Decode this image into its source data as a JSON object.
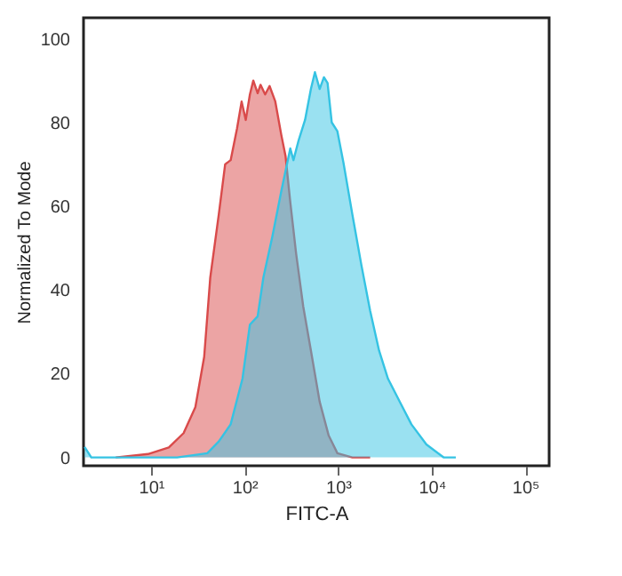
{
  "chart_data": {
    "type": "area",
    "xlabel": "FITC-A",
    "ylabel": "Normalized To Mode",
    "log": "x",
    "xlim": [
      1.9,
      180000
    ],
    "xticks": [
      {
        "value": 10,
        "label": "10¹"
      },
      {
        "value": 100,
        "label": "10²"
      },
      {
        "value": 1000,
        "label": "10³"
      },
      {
        "value": 10000,
        "label": "10⁴"
      },
      {
        "value": 100000,
        "label": "10⁵"
      }
    ],
    "ylim": [
      -2,
      105
    ],
    "yticks": [
      0,
      20,
      40,
      60,
      80,
      100
    ],
    "grid": false,
    "series": [
      {
        "color": "#d94a4a",
        "x": [
          4.2,
          9.3,
          15.5,
          22.3,
          29.8,
          37,
          43,
          53,
          62,
          71,
          83,
          93,
          103,
          114,
          124,
          138,
          148,
          166,
          185,
          213,
          247,
          274,
          308,
          356,
          424,
          512,
          635,
          793,
          982,
          1420,
          2200
        ],
        "values": [
          0,
          0.8,
          2.4,
          5.8,
          12,
          24,
          43,
          58,
          70,
          71,
          78.5,
          85,
          80.6,
          86.7,
          90,
          87,
          89,
          86.7,
          88.7,
          85,
          77,
          72,
          61,
          48.6,
          36,
          25.5,
          13.3,
          5.2,
          1,
          0,
          0
        ]
      },
      {
        "color": "#35c3e3",
        "x": [
          1.95,
          2.3,
          19,
          40,
          53,
          71,
          95,
          114,
          138,
          159,
          198,
          247,
          308,
          333,
          379,
          443,
          512,
          565,
          635,
          705,
          771,
          855,
          982,
          1140,
          1420,
          1770,
          2200,
          2740,
          3410,
          4560,
          6070,
          8780,
          13400,
          18100
        ],
        "values": [
          2.5,
          0,
          0,
          1,
          3.8,
          7.9,
          18.8,
          31.7,
          33.7,
          43,
          52.7,
          63.6,
          73.8,
          71,
          75.8,
          80.6,
          88,
          92,
          88,
          90.8,
          89.4,
          80,
          77.9,
          70.4,
          58,
          46,
          35,
          25.5,
          18.8,
          13.3,
          7.9,
          3.1,
          0,
          0
        ]
      }
    ]
  }
}
